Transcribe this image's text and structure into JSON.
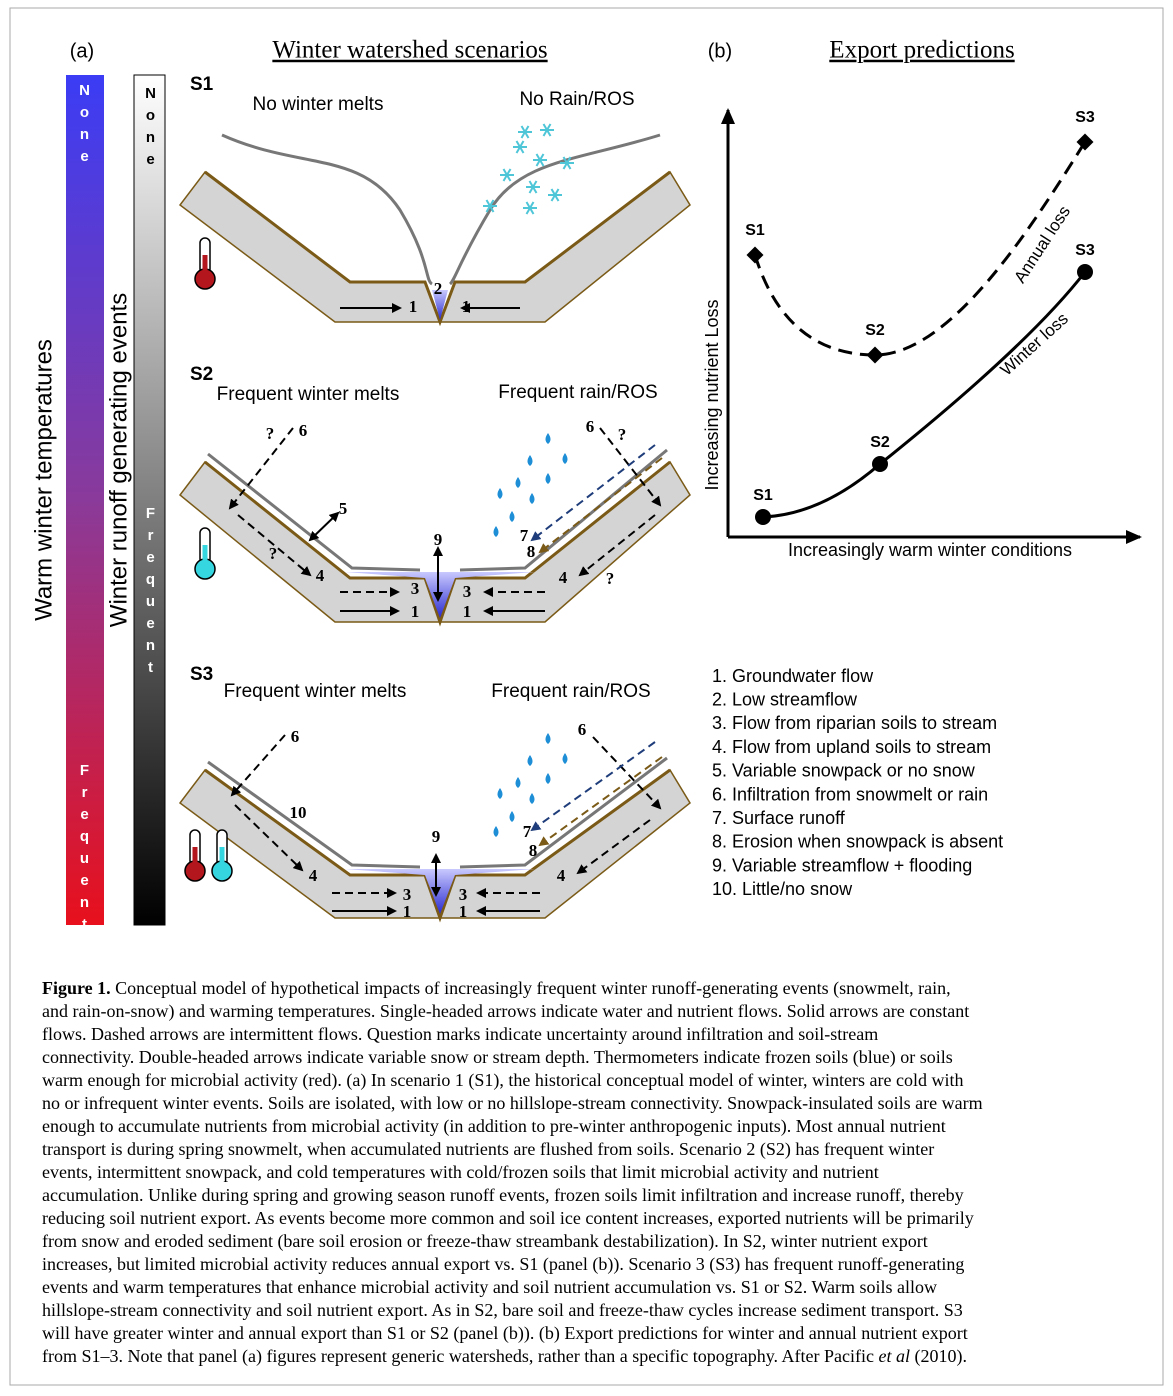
{
  "panel_a": {
    "label": "(a)",
    "title": "Winter watershed scenarios",
    "temperature_bar": {
      "axis_label": "Warm winter temperatures",
      "top": "None",
      "bottom": "Frequent"
    },
    "runoff_bar": {
      "axis_label": "Winter runoff generating events",
      "top": "None",
      "bottom": "Frequent"
    },
    "scenarios": [
      {
        "name": "S1",
        "left": "No winter melts",
        "right": "No Rain/ROS",
        "markers": [
          "1",
          "1",
          "2"
        ]
      },
      {
        "name": "S2",
        "left": "Frequent winter melts",
        "right": "Frequent rain/ROS",
        "markers": [
          "?",
          "6",
          "5",
          "?",
          "4",
          "3",
          "1",
          "9",
          "3",
          "1",
          "6",
          "?",
          "7",
          "8",
          "?",
          "4"
        ]
      },
      {
        "name": "S3",
        "left": "Frequent winter melts",
        "right": "Frequent rain/ROS",
        "markers": [
          "6",
          "10",
          "4",
          "9",
          "3",
          "1",
          "3",
          "1",
          "6",
          "7",
          "8",
          "4"
        ]
      }
    ]
  },
  "panel_b": {
    "label": "(b)",
    "title": "Export predictions",
    "y_label": "Increasing nutrient Loss",
    "x_label": "Increasingly warm winter conditions",
    "annual": {
      "name": "Annual loss",
      "points": [
        "S1",
        "S2",
        "S3"
      ]
    },
    "winter": {
      "name": "Winter loss",
      "points": [
        "S1",
        "S2",
        "S3"
      ]
    }
  },
  "legend": [
    "1. Groundwater flow",
    "2. Low streamflow",
    "3. Flow from riparian soils to stream",
    "4. Flow from upland soils to stream",
    "5. Variable snowpack or no snow",
    "6. Infiltration from snowmelt or rain",
    "7. Surface runoff",
    "8. Erosion when snowpack is absent",
    "9. Variable streamflow + flooding",
    "10. Little/no snow"
  ],
  "caption": {
    "label": "Figure 1.",
    "lines": [
      " Conceptual model of hypothetical impacts of increasingly frequent winter runoff-generating events (snowmelt, rain,",
      "and rain-on-snow) and warming temperatures. Single-headed arrows indicate water and nutrient flows. Solid arrows are constant",
      "flows. Dashed arrows are intermittent flows. Question marks indicate uncertainty around infiltration and soil-stream",
      "connectivity. Double-headed arrows indicate variable snow or stream depth. Thermometers indicate frozen soils (blue) or soils",
      "warm enough for microbial activity (red). (a) In scenario 1 (S1), the historical conceptual model of winter, winters are cold with",
      "no or infrequent winter events. Soils are isolated, with low or no hillslope-stream connectivity. Snowpack-insulated soils are warm",
      "enough to accumulate nutrients from microbial activity (in addition to pre-winter anthropogenic inputs). Most annual nutrient",
      "transport is during spring snowmelt, when accumulated nutrients are flushed from soils. Scenario 2 (S2) has frequent winter",
      "events, intermittent snowpack, and cold temperatures with cold/frozen soils that limit microbial activity and nutrient",
      "accumulation. Unlike during spring and growing season runoff events, frozen soils limit infiltration and increase runoff, thereby",
      "reducing soil nutrient export. As events become more common and soil ice content increases, exported nutrients will be primarily",
      "from snow and eroded sediment (bare soil erosion or freeze-thaw streambank destabilization). In S2, winter nutrient export",
      "increases, but limited microbial activity reduces annual export vs. S1 (panel (b)). Scenario 3 (S3) has frequent runoff-generating",
      "events and warm temperatures that enhance microbial activity and soil nutrient accumulation vs. S1 or S2. Warm soils allow",
      "hillslope-stream connectivity and soil nutrient export. As in S2, bare soil and freeze-thaw cycles increase sediment transport. S3",
      "will have greater winter and annual export than S1 or S2 (panel (b)). (b) Export predictions for winter and annual nutrient export"
    ],
    "last_line": [
      "from S1–3. Note that panel (a) figures represent generic watersheds, rather than a specific topography. After Pacific ",
      "et al",
      " (2010)."
    ]
  }
}
